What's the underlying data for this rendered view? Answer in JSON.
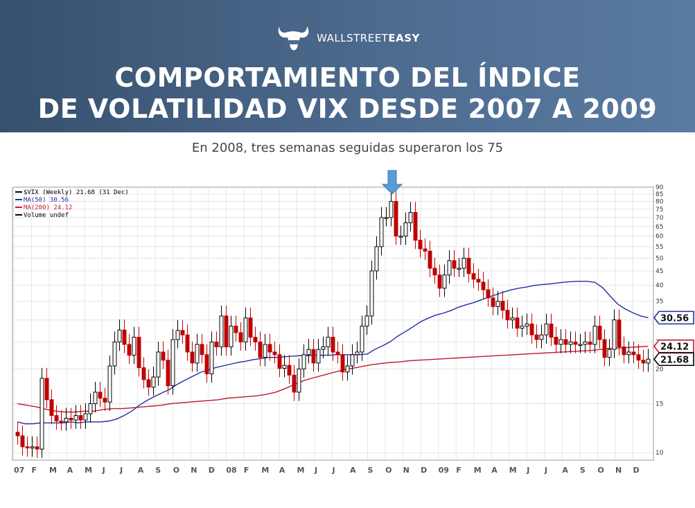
{
  "header": {
    "brand_regular": "WALLSTREET",
    "brand_bold": "EASY",
    "title_line1": "COMPORTAMIENTO DEL ÍNDICE",
    "title_line2": "DE VOLATILIDAD VIX DESDE 2007 A 2009",
    "subtitle": "En 2008, tres semanas seguidas superaron los 75"
  },
  "colors": {
    "banner": "#4a6788",
    "up": "#000000",
    "down": "#c00000",
    "ma50": "#1f2d9e",
    "ma200": "#c0182e",
    "arrow": "#5b9bd5"
  },
  "chart_data": {
    "type": "candlestick",
    "title": "",
    "legend": [
      "$VIX (Weekly) 21.68 (31 Dec)",
      "MA(50) 30.56",
      "MA(200) 24.12",
      "Volume undef"
    ],
    "scale": "log",
    "y_ticks": [
      10,
      15,
      20,
      25,
      30,
      35,
      40,
      45,
      50,
      55,
      60,
      65,
      70,
      75,
      80,
      85,
      90
    ],
    "ylim": [
      9.4,
      90
    ],
    "x_labels": [
      "07",
      "F",
      "M",
      "A",
      "M",
      "J",
      "J",
      "A",
      "S",
      "O",
      "N",
      "D",
      "08",
      "F",
      "M",
      "A",
      "M",
      "J",
      "J",
      "A",
      "S",
      "O",
      "N",
      "D",
      "09",
      "F",
      "M",
      "A",
      "M",
      "J",
      "J",
      "A",
      "S",
      "O",
      "N",
      "D"
    ],
    "close": [
      11.5,
      10.5,
      10.4,
      10.5,
      10.3,
      18.5,
      15.5,
      13.6,
      13.0,
      12.9,
      13.3,
      13.1,
      13.6,
      13.1,
      13.8,
      15.0,
      16.5,
      15.7,
      15.2,
      20.5,
      25.0,
      27.6,
      24.5,
      22.4,
      26.0,
      20.2,
      18.3,
      17.2,
      18.7,
      23.0,
      21.5,
      17.4,
      25.5,
      27.5,
      26.5,
      23.0,
      21.0,
      24.5,
      22.5,
      19.2,
      25.0,
      24.0,
      31.0,
      24.0,
      28.5,
      27.0,
      25.0,
      30.5,
      26.0,
      25.0,
      22.0,
      24.5,
      23.0,
      22.5,
      20.1,
      20.6,
      19.0,
      16.5,
      20.0,
      22.5,
      23.5,
      21.0,
      23.5,
      24.0,
      26.0,
      23.0,
      22.5,
      19.5,
      20.5,
      22.5,
      23.0,
      28.5,
      31.0,
      45.0,
      55.0,
      70.0,
      70.0,
      80.0,
      60.0,
      60.0,
      67.0,
      73.0,
      58.0,
      54.0,
      53.0,
      46.0,
      43.5,
      39.0,
      43.5,
      49.0,
      46.0,
      46.0,
      50.0,
      44.0,
      42.0,
      41.0,
      38.5,
      36.0,
      33.5,
      35.0,
      32.5,
      30.0,
      30.5,
      28.0,
      28.5,
      29.0,
      26.5,
      25.5,
      26.5,
      29.0,
      26.0,
      24.5,
      25.5,
      24.5,
      25.0,
      24.5,
      24.5,
      25.0,
      24.5,
      28.5,
      25.5,
      22.0,
      23.5,
      30.0,
      24.0,
      22.5,
      23.0,
      22.5,
      21.5,
      21.0,
      21.68
    ],
    "ma50": [
      12.9,
      12.7,
      12.7,
      12.8,
      12.8,
      12.8,
      12.8,
      12.9,
      12.8,
      12.9,
      12.9,
      12.9,
      13.0,
      13.2,
      13.6,
      14.1,
      14.8,
      15.4,
      15.9,
      16.4,
      16.9,
      17.6,
      18.2,
      18.8,
      19.4,
      19.8,
      20.2,
      20.5,
      20.8,
      21.1,
      21.3,
      21.6,
      21.8,
      22.0,
      22.0,
      22.1,
      22.2,
      22.3,
      22.3,
      22.4,
      22.4,
      22.4,
      22.5,
      22.5,
      22.5,
      22.5,
      22.6,
      23.5,
      24.2,
      25.0,
      26.2,
      27.2,
      28.3,
      29.5,
      30.4,
      31.2,
      31.7,
      32.4,
      33.3,
      34.0,
      34.6,
      35.4,
      36.2,
      37.0,
      37.8,
      38.5,
      39.0,
      39.4,
      39.9,
      40.2,
      40.4,
      40.7,
      41.0,
      41.2,
      41.3,
      41.3,
      40.9,
      39.2,
      36.5,
      34.2,
      32.8,
      31.8,
      31.0,
      30.56
    ],
    "ma200": [
      15.0,
      14.8,
      14.6,
      14.3,
      14.1,
      14.0,
      14.0,
      14.1,
      14.1,
      14.3,
      14.4,
      14.4,
      14.5,
      14.6,
      14.7,
      14.8,
      15.0,
      15.1,
      15.2,
      15.3,
      15.4,
      15.5,
      15.7,
      15.8,
      15.9,
      16.0,
      16.2,
      16.5,
      17.0,
      17.6,
      18.2,
      18.6,
      19.0,
      19.4,
      19.8,
      20.1,
      20.4,
      20.7,
      20.9,
      21.1,
      21.2,
      21.4,
      21.5,
      21.6,
      21.7,
      21.8,
      21.9,
      22.0,
      22.1,
      22.2,
      22.3,
      22.4,
      22.5,
      22.6,
      22.7,
      22.8,
      22.9,
      23.0,
      23.1,
      23.2,
      23.3,
      23.5,
      23.7,
      23.8,
      23.9,
      24.0,
      24.12
    ],
    "last_values": {
      "ma50": "30.56",
      "ma200": "24.12",
      "close": "21.68"
    },
    "annotation": "arrow at Oct 2008 peak"
  }
}
